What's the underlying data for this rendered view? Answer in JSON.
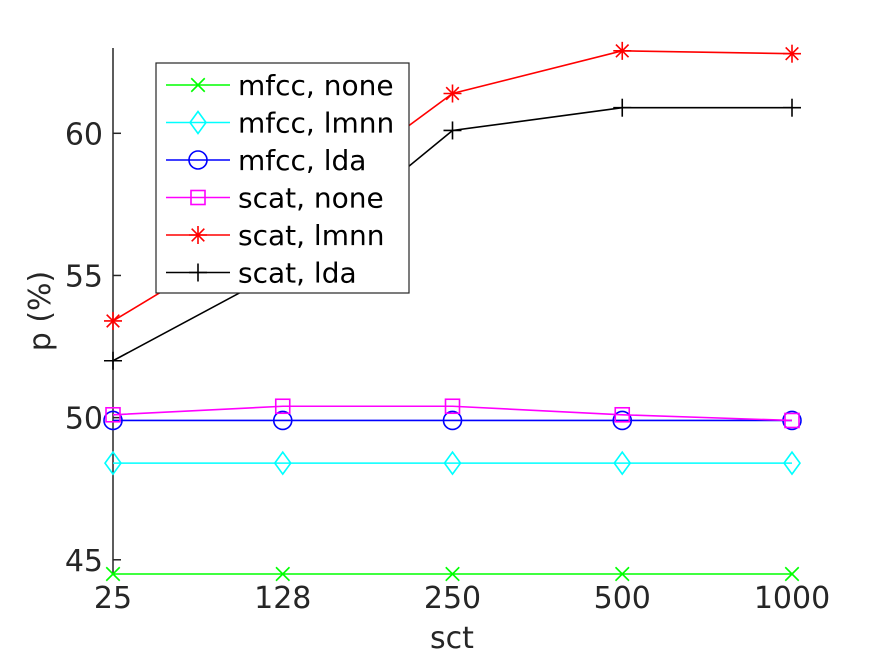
{
  "chart_data": {
    "type": "line",
    "xlabel": "sct",
    "ylabel": "p (%)",
    "x": [
      "25",
      "128",
      "250",
      "500",
      "1000"
    ],
    "ylim": [
      44.5,
      63
    ],
    "yticks": [
      45,
      50,
      55,
      60
    ],
    "grid": false,
    "legend_position": "top-left",
    "series": [
      {
        "name": "mfcc, none",
        "color": "#00ff00",
        "marker": "x",
        "values": [
          44.5,
          44.5,
          44.5,
          44.5,
          44.5
        ]
      },
      {
        "name": "mfcc, lmnn",
        "color": "#00ffff",
        "marker": "diamond",
        "values": [
          48.4,
          48.4,
          48.4,
          48.4,
          48.4
        ]
      },
      {
        "name": "mfcc, lda",
        "color": "#0000ff",
        "marker": "circle",
        "values": [
          49.9,
          49.9,
          49.9,
          49.9,
          49.9
        ]
      },
      {
        "name": "scat, none",
        "color": "#ff00ff",
        "marker": "square",
        "values": [
          50.1,
          50.4,
          50.4,
          50.1,
          49.9
        ]
      },
      {
        "name": "scat, lmnn",
        "color": "#ff0000",
        "marker": "asterisk",
        "values": [
          53.4,
          57.0,
          61.4,
          62.9,
          62.8
        ]
      },
      {
        "name": "scat, lda",
        "color": "#000000",
        "marker": "plus",
        "values": [
          52.0,
          55.2,
          60.1,
          60.9,
          60.9
        ]
      }
    ]
  }
}
